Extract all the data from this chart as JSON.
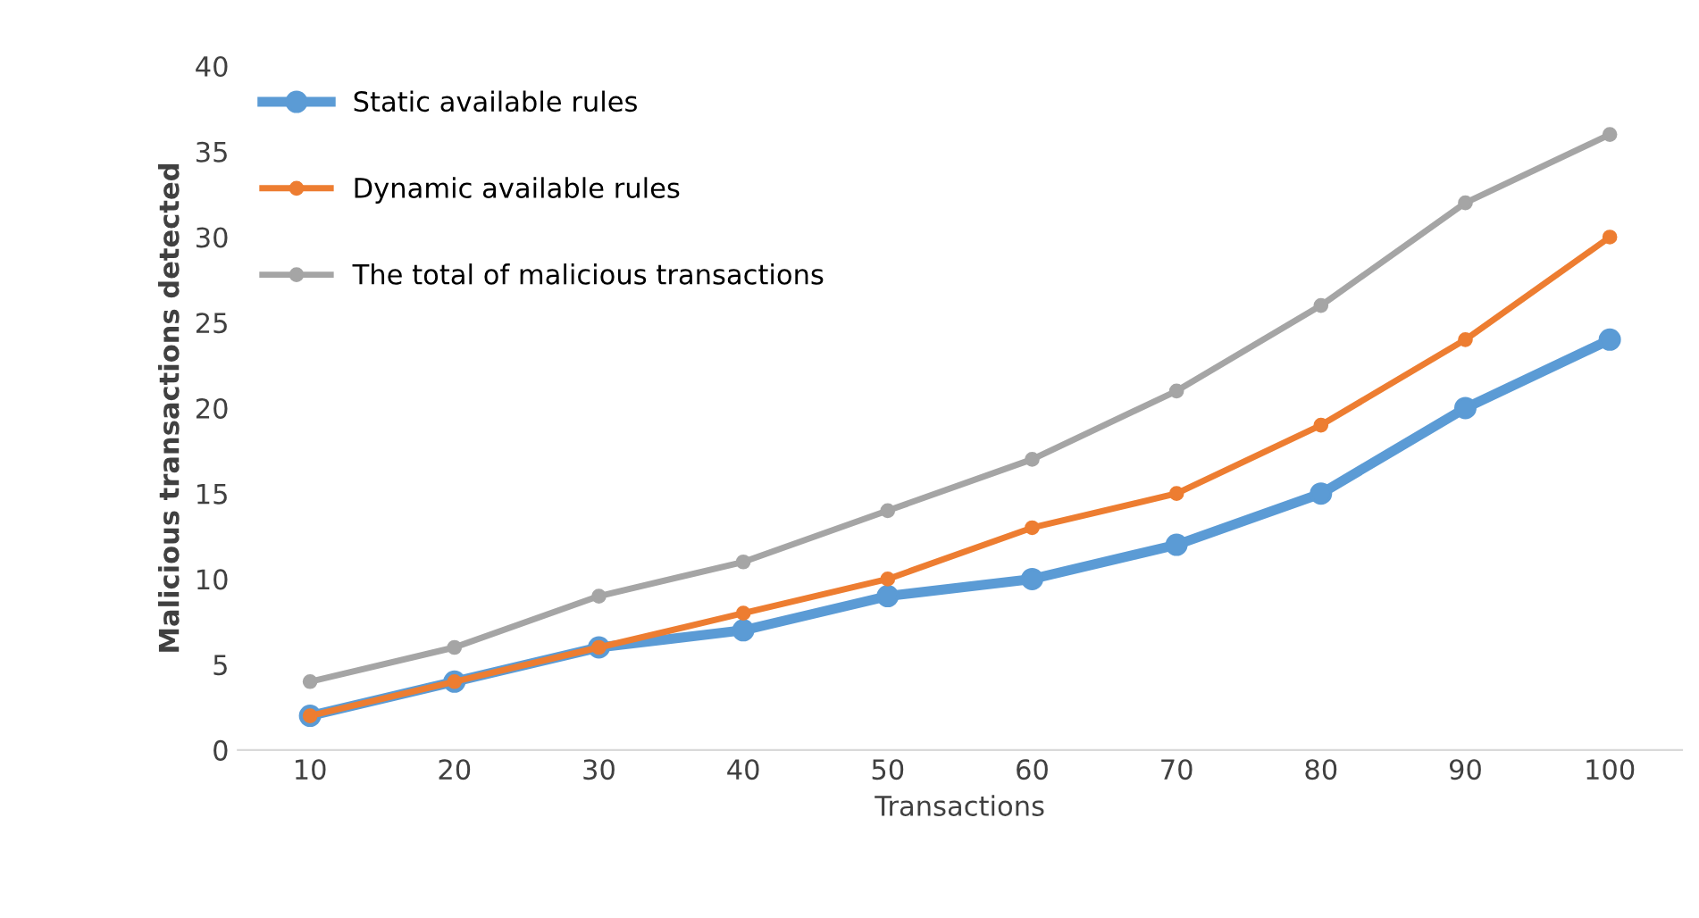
{
  "chart_data": {
    "type": "line",
    "xlabel": "Transactions",
    "ylabel": "Malicious transactions detected",
    "categories": [
      "10",
      "20",
      "30",
      "40",
      "50",
      "60",
      "70",
      "80",
      "90",
      "100"
    ],
    "series": [
      {
        "name": "Static available rules",
        "color": "#5b9bd5",
        "values": [
          2,
          4,
          6,
          7,
          9,
          10,
          12,
          15,
          20,
          24
        ]
      },
      {
        "name": "Dynamic available rules",
        "color": "#ed7d31",
        "values": [
          2,
          4,
          6,
          8,
          10,
          13,
          15,
          19,
          24,
          30
        ]
      },
      {
        "name": "The total of malicious transactions",
        "color": "#a5a5a5",
        "values": [
          4,
          6,
          9,
          11,
          14,
          17,
          21,
          26,
          32,
          36
        ]
      }
    ],
    "ylim": [
      0,
      40
    ],
    "yticks": [
      0,
      5,
      10,
      15,
      20,
      25,
      30,
      35,
      40
    ],
    "grid": false,
    "legend": "top left",
    "marker": "circle",
    "line_style": "solid"
  }
}
